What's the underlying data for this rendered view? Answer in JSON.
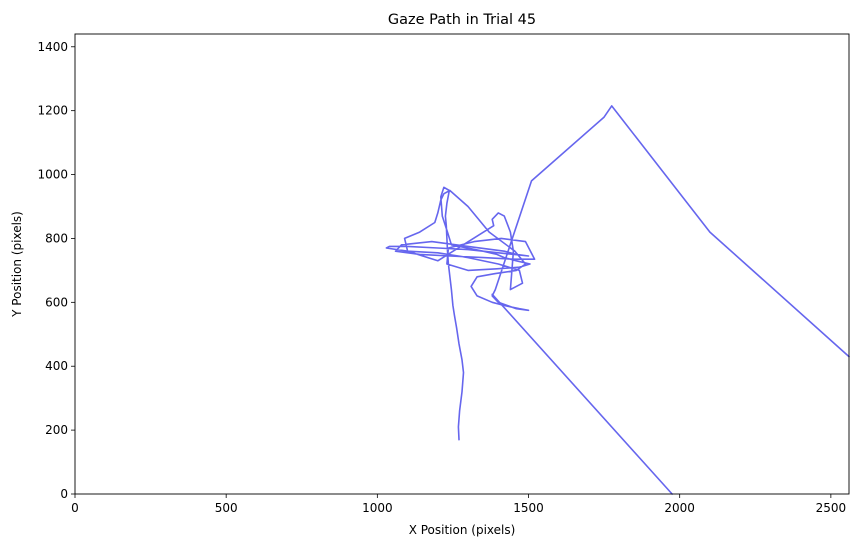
{
  "chart_data": {
    "type": "line",
    "title": "Gaze Path in Trial 45",
    "xlabel": "X Position (pixels)",
    "ylabel": "Y Position (pixels)",
    "xlim": [
      0,
      2560
    ],
    "ylim": [
      0,
      1440
    ],
    "xticks": [
      0,
      500,
      1000,
      1500,
      2000,
      2500
    ],
    "yticks": [
      0,
      200,
      400,
      600,
      800,
      1000,
      1200,
      1400
    ],
    "grid": false,
    "legend": "none",
    "line_color": "#6666ee",
    "series": [
      {
        "x": [
          1270,
          1268,
          1272,
          1280,
          1285,
          1280,
          1270,
          1262,
          1255,
          1250,
          1248,
          1245,
          1240,
          1235,
          1232,
          1230,
          1228,
          1225,
          1230,
          1238,
          1220,
          1210,
          1215,
          1232,
          1245,
          1350,
          1395,
          1420,
          1460,
          1505,
          1470,
          1395,
          1300,
          1230,
          1235,
          1320,
          1410,
          1490,
          1520,
          1450,
          1350,
          1240,
          1140,
          1060,
          1080,
          1180,
          1300,
          1420,
          1460,
          1500,
          1400,
          1300,
          1200,
          1100,
          1040,
          1030,
          1100,
          1200,
          1300,
          1400,
          1470,
          1480,
          1440,
          1445,
          1450,
          1440,
          1420,
          1400,
          1380,
          1385,
          1200,
          1100,
          1090,
          1140,
          1190,
          1200,
          1205,
          1210,
          1220,
          1240,
          1300,
          1370,
          1455,
          1490,
          1460,
          1390,
          1330,
          1310,
          1330,
          1380,
          1420,
          1470,
          1500,
          1460,
          1400,
          1380,
          1390,
          1510,
          1750,
          1775,
          2100,
          2560
        ],
        "y": [
          170,
          210,
          260,
          320,
          380,
          420,
          470,
          520,
          560,
          590,
          610,
          640,
          680,
          720,
          760,
          800,
          840,
          870,
          910,
          950,
          960,
          930,
          870,
          820,
          780,
          760,
          750,
          740,
          730,
          720,
          710,
          705,
          700,
          720,
          770,
          790,
          800,
          790,
          735,
          735,
          740,
          745,
          750,
          760,
          780,
          790,
          775,
          760,
          750,
          745,
          755,
          765,
          770,
          775,
          775,
          770,
          760,
          755,
          740,
          720,
          700,
          660,
          640,
          700,
          760,
          820,
          870,
          880,
          860,
          840,
          730,
          760,
          800,
          820,
          850,
          880,
          900,
          920,
          940,
          950,
          900,
          820,
          760,
          720,
          700,
          690,
          680,
          650,
          620,
          600,
          590,
          580,
          575,
          580,
          600,
          620,
          640,
          980,
          1180,
          1215,
          820,
          430
        ]
      },
      {
        "x": [
          1380,
          1975
        ],
        "y": [
          625,
          0
        ]
      }
    ]
  }
}
